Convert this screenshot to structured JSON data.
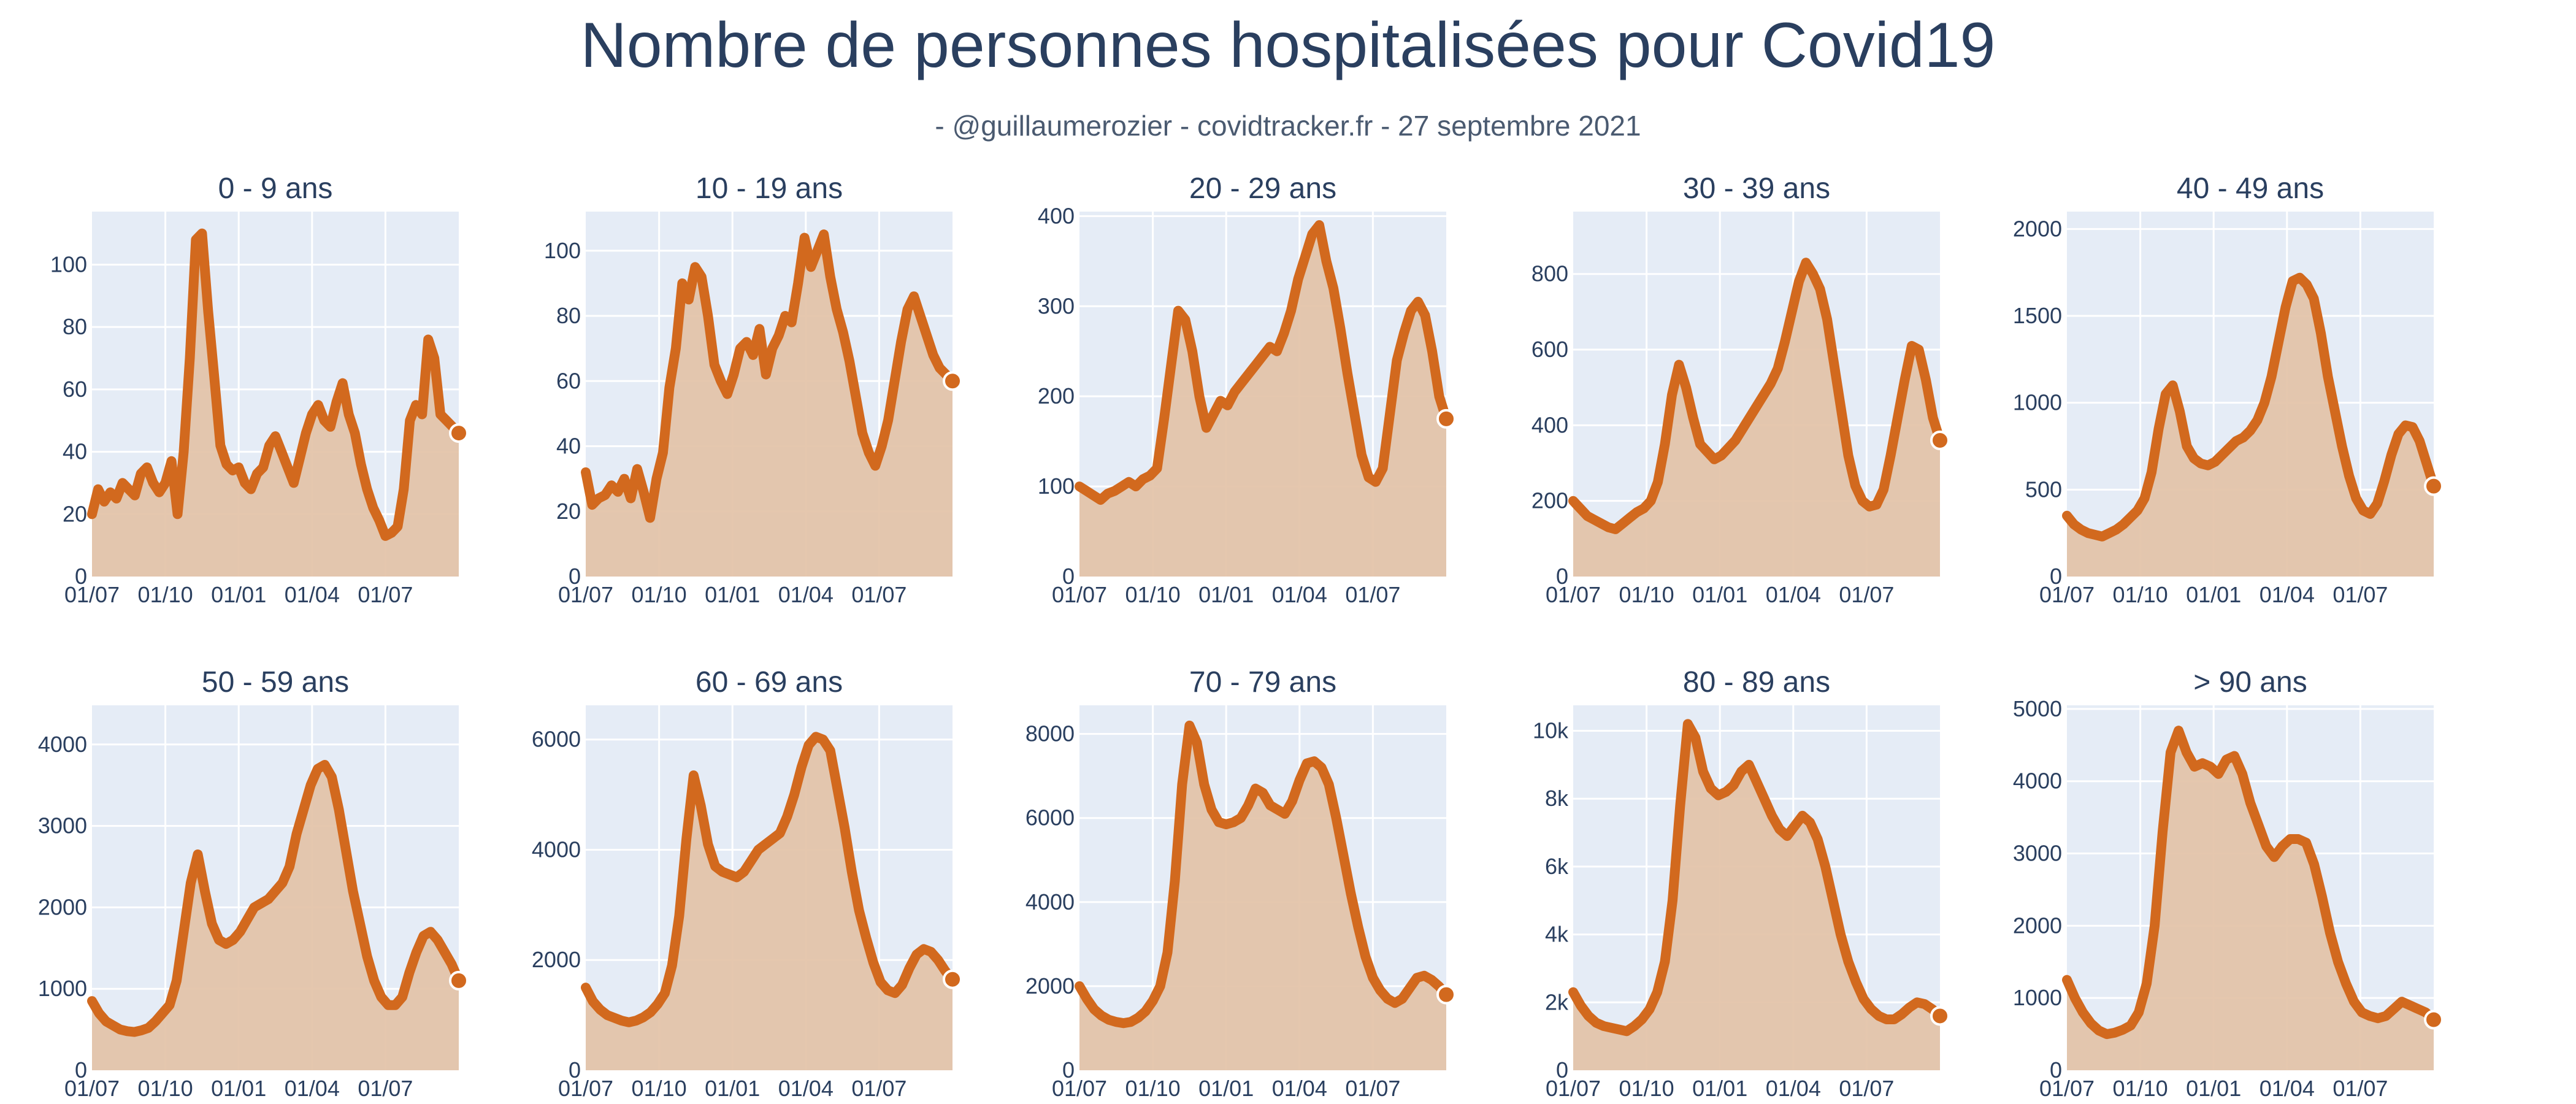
{
  "title": "Nombre de personnes hospitalisées pour Covid19",
  "subtitle": "- @guillaumerozier - covidtracker.fr - 27 septembre 2021",
  "colors": {
    "line": "#d2691e",
    "fill": "#e3c2a7",
    "plot_bg": "#e5ecf6",
    "grid": "#ffffff",
    "text": "#2a3f5f"
  },
  "chart_data": [
    {
      "type": "area",
      "title": "0 - 9 ans",
      "ylim": [
        0,
        117
      ],
      "yticks": [
        0,
        20,
        40,
        60,
        80,
        100
      ],
      "ytick_labels": [
        "0",
        "20",
        "40",
        "60",
        "80",
        "100"
      ],
      "xticks": [
        "01/07",
        "01/10",
        "01/01",
        "01/04",
        "01/07"
      ],
      "values": [
        20,
        28,
        24,
        27,
        25,
        30,
        28,
        26,
        33,
        35,
        30,
        27,
        30,
        37,
        20,
        40,
        70,
        108,
        110,
        85,
        64,
        42,
        36,
        34,
        35,
        30,
        28,
        33,
        35,
        42,
        45,
        40,
        35,
        30,
        38,
        46,
        52,
        55,
        50,
        48,
        56,
        62,
        52,
        46,
        36,
        28,
        22,
        18,
        13,
        14,
        16,
        28,
        50,
        55,
        52,
        76,
        70,
        52,
        50,
        48,
        46
      ]
    },
    {
      "type": "area",
      "title": "10 - 19 ans",
      "ylim": [
        0,
        112
      ],
      "yticks": [
        0,
        20,
        40,
        60,
        80,
        100
      ],
      "ytick_labels": [
        "0",
        "20",
        "40",
        "60",
        "80",
        "100"
      ],
      "xticks": [
        "01/07",
        "01/10",
        "01/01",
        "01/04",
        "01/07"
      ],
      "values": [
        32,
        22,
        24,
        25,
        28,
        26,
        30,
        24,
        33,
        26,
        18,
        30,
        38,
        58,
        70,
        90,
        85,
        95,
        92,
        80,
        65,
        60,
        56,
        62,
        70,
        72,
        68,
        76,
        62,
        70,
        74,
        80,
        78,
        90,
        104,
        95,
        100,
        105,
        92,
        82,
        75,
        66,
        55,
        44,
        38,
        34,
        40,
        48,
        60,
        72,
        82,
        86,
        80,
        74,
        68,
        64,
        62,
        60
      ]
    },
    {
      "type": "area",
      "title": "20 - 29 ans",
      "ylim": [
        0,
        405
      ],
      "yticks": [
        0,
        100,
        200,
        300,
        400
      ],
      "ytick_labels": [
        "0",
        "100",
        "200",
        "300",
        "400"
      ],
      "xticks": [
        "01/07",
        "01/10",
        "01/01",
        "01/04",
        "01/07"
      ],
      "values": [
        100,
        95,
        90,
        85,
        92,
        95,
        100,
        105,
        100,
        108,
        112,
        120,
        175,
        235,
        295,
        285,
        250,
        200,
        165,
        180,
        195,
        190,
        205,
        215,
        225,
        235,
        245,
        255,
        250,
        270,
        295,
        330,
        355,
        380,
        390,
        350,
        320,
        275,
        225,
        180,
        135,
        110,
        105,
        120,
        180,
        240,
        270,
        295,
        305,
        290,
        250,
        200,
        175
      ]
    },
    {
      "type": "area",
      "title": "30 - 39 ans",
      "ylim": [
        0,
        965
      ],
      "yticks": [
        0,
        200,
        400,
        600,
        800
      ],
      "ytick_labels": [
        "0",
        "200",
        "400",
        "600",
        "800"
      ],
      "xticks": [
        "01/07",
        "01/10",
        "01/01",
        "01/04",
        "01/07"
      ],
      "values": [
        200,
        180,
        160,
        150,
        140,
        130,
        125,
        140,
        155,
        170,
        180,
        200,
        250,
        350,
        480,
        560,
        500,
        420,
        350,
        330,
        310,
        320,
        340,
        360,
        390,
        420,
        450,
        480,
        510,
        550,
        620,
        700,
        780,
        830,
        800,
        760,
        680,
        560,
        440,
        320,
        240,
        200,
        185,
        190,
        230,
        320,
        420,
        520,
        610,
        600,
        520,
        420,
        360
      ]
    },
    {
      "type": "area",
      "title": "40 - 49 ans",
      "ylim": [
        0,
        2100
      ],
      "yticks": [
        0,
        500,
        1000,
        1500,
        2000
      ],
      "ytick_labels": [
        "0",
        "500",
        "1000",
        "1500",
        "2000"
      ],
      "xticks": [
        "01/07",
        "01/10",
        "01/01",
        "01/04",
        "01/07"
      ],
      "values": [
        350,
        300,
        270,
        250,
        240,
        230,
        250,
        270,
        300,
        340,
        380,
        450,
        600,
        850,
        1050,
        1100,
        950,
        750,
        680,
        650,
        640,
        660,
        700,
        740,
        780,
        800,
        840,
        900,
        1000,
        1150,
        1350,
        1550,
        1700,
        1720,
        1680,
        1600,
        1400,
        1150,
        950,
        750,
        580,
        450,
        380,
        360,
        420,
        550,
        700,
        820,
        870,
        860,
        780,
        650,
        520
      ]
    },
    {
      "type": "area",
      "title": "50 - 59 ans",
      "ylim": [
        0,
        4480
      ],
      "yticks": [
        0,
        1000,
        2000,
        3000,
        4000
      ],
      "ytick_labels": [
        "0",
        "1000",
        "2000",
        "3000",
        "4000"
      ],
      "xticks": [
        "01/07",
        "01/10",
        "01/01",
        "01/04",
        "01/07"
      ],
      "values": [
        850,
        700,
        600,
        550,
        500,
        480,
        470,
        490,
        520,
        600,
        700,
        800,
        1100,
        1700,
        2300,
        2650,
        2200,
        1800,
        1600,
        1550,
        1600,
        1700,
        1850,
        2000,
        2050,
        2100,
        2200,
        2300,
        2500,
        2900,
        3200,
        3500,
        3700,
        3750,
        3600,
        3200,
        2700,
        2200,
        1800,
        1400,
        1100,
        900,
        800,
        800,
        900,
        1200,
        1450,
        1650,
        1700,
        1600,
        1450,
        1300,
        1100
      ]
    },
    {
      "type": "area",
      "title": "60 - 69 ans",
      "ylim": [
        0,
        6620
      ],
      "yticks": [
        0,
        2000,
        4000,
        6000
      ],
      "ytick_labels": [
        "0",
        "2000",
        "4000",
        "6000"
      ],
      "xticks": [
        "01/07",
        "01/10",
        "01/01",
        "01/04",
        "01/07"
      ],
      "values": [
        1500,
        1250,
        1100,
        1000,
        950,
        900,
        870,
        900,
        960,
        1050,
        1200,
        1400,
        1900,
        2800,
        4200,
        5350,
        4800,
        4100,
        3700,
        3600,
        3550,
        3500,
        3600,
        3800,
        4000,
        4100,
        4200,
        4300,
        4600,
        5000,
        5500,
        5900,
        6050,
        6000,
        5800,
        5100,
        4400,
        3600,
        2900,
        2400,
        1950,
        1600,
        1450,
        1400,
        1550,
        1850,
        2100,
        2200,
        2150,
        2000,
        1800,
        1650
      ]
    },
    {
      "type": "area",
      "title": "70 - 79 ans",
      "ylim": [
        0,
        8680
      ],
      "yticks": [
        0,
        2000,
        4000,
        6000,
        8000
      ],
      "ytick_labels": [
        "0",
        "2000",
        "4000",
        "6000",
        "8000"
      ],
      "xticks": [
        "01/07",
        "01/10",
        "01/01",
        "01/04",
        "01/07"
      ],
      "values": [
        2000,
        1700,
        1450,
        1300,
        1200,
        1150,
        1120,
        1150,
        1250,
        1400,
        1650,
        2000,
        2800,
        4500,
        6800,
        8200,
        7800,
        6800,
        6200,
        5900,
        5850,
        5900,
        6000,
        6300,
        6700,
        6600,
        6300,
        6200,
        6100,
        6400,
        6900,
        7300,
        7350,
        7200,
        6800,
        6000,
        5100,
        4200,
        3400,
        2700,
        2200,
        1900,
        1700,
        1600,
        1700,
        1950,
        2200,
        2250,
        2150,
        2000,
        1800
      ]
    },
    {
      "type": "area",
      "title": "80 - 89 ans",
      "ylim": [
        0,
        10750
      ],
      "yticks": [
        0,
        2000,
        4000,
        6000,
        8000,
        10000
      ],
      "ytick_labels": [
        "0",
        "2k",
        "4k",
        "6k",
        "8k",
        "10k"
      ],
      "xticks": [
        "01/07",
        "01/10",
        "01/01",
        "01/04",
        "01/07"
      ],
      "values": [
        2300,
        1900,
        1600,
        1400,
        1300,
        1250,
        1200,
        1150,
        1300,
        1500,
        1800,
        2300,
        3200,
        5000,
        7800,
        10200,
        9800,
        8800,
        8300,
        8100,
        8200,
        8400,
        8800,
        9000,
        8500,
        8000,
        7500,
        7100,
        6900,
        7200,
        7500,
        7300,
        6800,
        6000,
        5000,
        4000,
        3200,
        2600,
        2100,
        1800,
        1600,
        1500,
        1500,
        1650,
        1850,
        2000,
        1950,
        1800,
        1600
      ]
    },
    {
      "type": "area",
      "title": "> 90 ans",
      "ylim": [
        0,
        5050
      ],
      "yticks": [
        0,
        1000,
        2000,
        3000,
        4000,
        5000
      ],
      "ytick_labels": [
        "0",
        "1000",
        "2000",
        "3000",
        "4000",
        "5000"
      ],
      "xticks": [
        "01/07",
        "01/10",
        "01/01",
        "01/04",
        "01/07"
      ],
      "values": [
        1250,
        1000,
        800,
        650,
        550,
        500,
        520,
        560,
        620,
        800,
        1200,
        2000,
        3300,
        4400,
        4700,
        4400,
        4200,
        4250,
        4200,
        4100,
        4300,
        4350,
        4100,
        3700,
        3400,
        3100,
        2950,
        3100,
        3200,
        3200,
        3150,
        2850,
        2400,
        1900,
        1500,
        1200,
        950,
        800,
        750,
        720,
        750,
        850,
        950,
        900,
        850,
        800,
        700
      ]
    }
  ]
}
